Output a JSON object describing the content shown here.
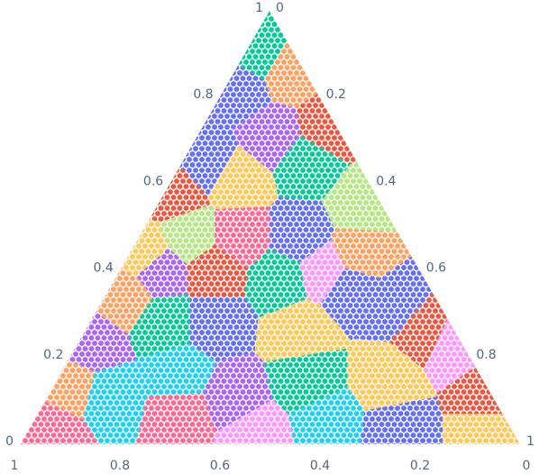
{
  "chart_data": {
    "type": "ternary",
    "a": [
      0.9,
      0.82,
      0.86,
      0.71,
      0.61,
      0.65,
      0.65,
      0.55,
      0.58,
      0.48,
      0.48,
      0.48,
      0.4,
      0.4,
      0.38,
      0.4,
      0.34,
      0.28,
      0.28,
      0.26,
      0.36,
      0.32,
      0.26,
      0.23,
      0.15,
      0.11,
      0.23,
      0.13,
      0.11,
      0.03,
      0.07,
      0.11,
      0.15,
      0.05,
      0.03,
      0.03,
      0.02,
      0.16,
      0.44,
      0.73,
      0.44
    ],
    "b": [
      0.07,
      0.15,
      0.03,
      0.14,
      0.26,
      0.3,
      0.1,
      0.04,
      0.4,
      0.42,
      0.32,
      0.2,
      0.19,
      0.41,
      0.29,
      0.52,
      0.62,
      0.47,
      0.57,
      0.31,
      0.16,
      0.09,
      0.06,
      0.02,
      0.19,
      0.01,
      0.74,
      0.83,
      0.77,
      0.92,
      0.64,
      0.52,
      0.35,
      0.36,
      0.23,
      0.05,
      0.52,
      0.6,
      0.53,
      0.02,
      0.1
    ],
    "c": [
      0.03,
      0.03,
      0.11,
      0.15,
      0.13,
      0.05,
      0.25,
      0.41,
      0.02,
      0.1,
      0.2,
      0.32,
      0.41,
      0.19,
      0.33,
      0.08,
      0.04,
      0.25,
      0.15,
      0.43,
      0.48,
      0.59,
      0.68,
      0.75,
      0.66,
      0.88,
      0.03,
      0.04,
      0.12,
      0.05,
      0.29,
      0.37,
      0.5,
      0.59,
      0.74,
      0.92,
      0.46,
      0.24,
      0.03,
      0.25,
      0.46
    ],
    "colors": [
      "#00cc96",
      "#636efa",
      "#FFA15A",
      "#ab63fa",
      "#FECB52",
      "#636efa",
      "#00cc96",
      "#B6E880",
      "#EF553B",
      "#B6E880",
      "#FF6692",
      "#636efa",
      "#FF97FF",
      "#EF553B",
      "#00cc96",
      "#ab63fa",
      "#FFA15A",
      "#636efa",
      "#00cc96",
      "#FECB52",
      "#636efa",
      "#636efa",
      "#EF553B",
      "#FF97FF",
      "#FECB52",
      "#EF553B",
      "#ab63fa",
      "#FFA15A",
      "#19d3f3",
      "#FF6692",
      "#FF6692",
      "#ab63fa",
      "#00cc96",
      "#19d3f3",
      "#636efa",
      "#FECB52",
      "#FF97FF",
      "#19d3f3",
      "#FECB52",
      "#EF553B",
      "#FFA15A"
    ],
    "aticks": [
      0,
      0.2,
      0.4,
      0.6,
      0.8,
      1
    ],
    "bticks": [
      0,
      0.2,
      0.4,
      0.6,
      0.8,
      1
    ],
    "cticks": [
      0,
      0.2,
      0.4,
      0.6,
      0.8,
      1
    ]
  }
}
